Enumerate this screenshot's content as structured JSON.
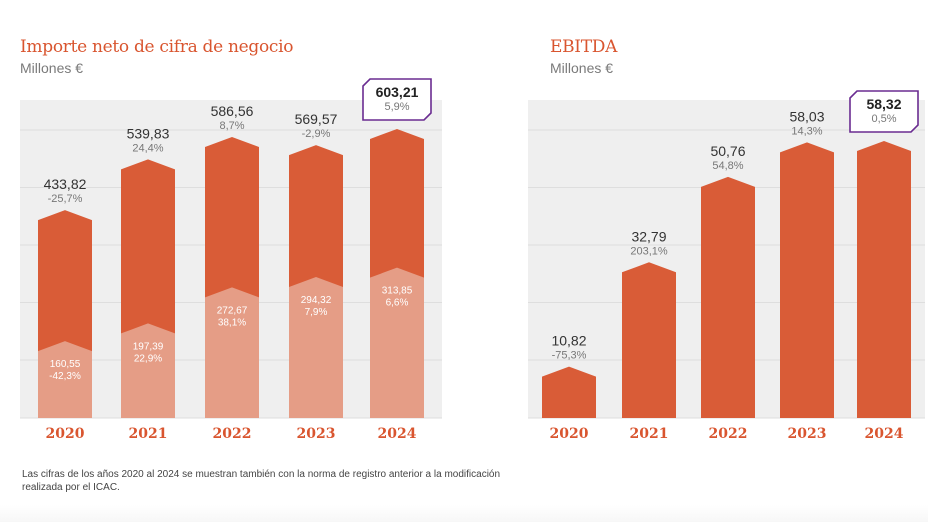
{
  "chart_data": [
    {
      "type": "bar",
      "title": "Importe neto de cifra de negocio",
      "subtitle": "Millones €",
      "categories": [
        "2020",
        "2021",
        "2022",
        "2023",
        "2024"
      ],
      "series": [
        {
          "name": "Importe neto de cifra de negocio",
          "values": [
            433.82,
            539.83,
            586.56,
            569.57,
            603.21
          ],
          "labels": [
            "433,82",
            "539,83",
            "586,56",
            "569,57",
            "603,21"
          ],
          "growth": [
            "-25,7%",
            "24,4%",
            "8,7%",
            "-2,9%",
            "5,9%"
          ]
        },
        {
          "name": "Norma de registro anterior",
          "values": [
            160.55,
            197.39,
            272.67,
            294.32,
            313.85
          ],
          "labels": [
            "160,55",
            "197,39",
            "272,67",
            "294,32",
            "313,85"
          ],
          "growth": [
            "-42,3%",
            "22,9%",
            "38,1%",
            "7,9%",
            "6,6%"
          ]
        }
      ],
      "highlight_index": 4,
      "ylim": [
        0,
        700
      ],
      "grid": true,
      "xlabel": "",
      "ylabel": ""
    },
    {
      "type": "bar",
      "title": "EBITDA",
      "subtitle": "Millones €",
      "categories": [
        "2020",
        "2021",
        "2022",
        "2023",
        "2024"
      ],
      "series": [
        {
          "name": "EBITDA",
          "values": [
            10.82,
            32.79,
            50.76,
            58.03,
            58.32
          ],
          "labels": [
            "10,82",
            "32,79",
            "50,76",
            "58,03",
            "58,32"
          ],
          "growth": [
            "-75,3%",
            "203,1%",
            "54,8%",
            "14,3%",
            "0,5%"
          ]
        }
      ],
      "highlight_index": 4,
      "ylim": [
        0,
        70
      ],
      "grid": true,
      "xlabel": "",
      "ylabel": ""
    }
  ],
  "colors": {
    "bar": "#d95c37",
    "bar_light": "#e59d86",
    "title": "#d9552f",
    "highlight_border": "#6a2c91",
    "plot_bg": "#efefef",
    "grid": "#dedede"
  },
  "footnote": "Las cifras de los años 2020 al 2024 se muestran también con la norma de registro anterior a la modificación realizada por el ICAC."
}
